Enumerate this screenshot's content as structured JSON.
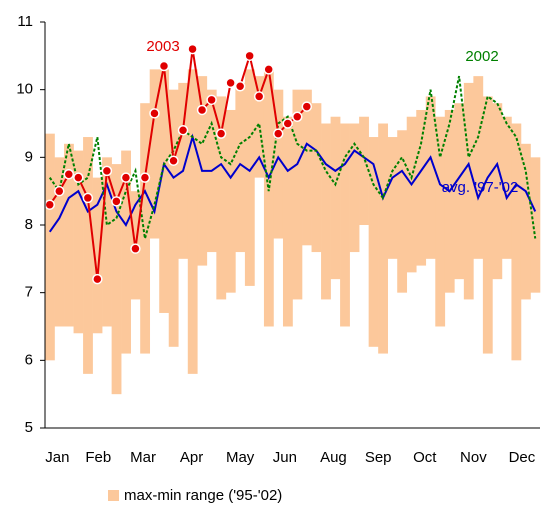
{
  "chart_data": {
    "type": "range-line",
    "xlim": [
      0,
      52
    ],
    "xticks": [
      {
        "value": 1.3,
        "label": "Jan"
      },
      {
        "value": 5.6,
        "label": "Feb"
      },
      {
        "value": 10.3,
        "label": "Mar"
      },
      {
        "value": 15.4,
        "label": "Apr"
      },
      {
        "value": 20.5,
        "label": "May"
      },
      {
        "value": 25.2,
        "label": "Jun"
      },
      {
        "value": 30.3,
        "label": "Aug"
      },
      {
        "value": 35,
        "label": "Sep"
      },
      {
        "value": 39.9,
        "label": "Oct"
      },
      {
        "value": 45,
        "label": "Nov"
      },
      {
        "value": 50.1,
        "label": "Dec"
      }
    ],
    "ylim": [
      5,
      11
    ],
    "yticks": [
      5,
      6,
      7,
      8,
      9,
      10,
      11
    ],
    "range": {
      "name": "max-min range ('95-'02)",
      "color": "#fcc89b",
      "high": [
        9.35,
        9.0,
        9.2,
        9.1,
        9.3,
        8.7,
        9.0,
        8.9,
        9.1,
        8.5,
        9.8,
        10.3,
        10.3,
        10.0,
        10.1,
        10.3,
        10.2,
        10.0,
        9.9,
        9.7,
        10.1,
        10.3,
        10.2,
        10.3,
        10.0,
        9.6,
        10.0,
        10.0,
        9.8,
        9.5,
        9.6,
        9.5,
        9.5,
        9.6,
        9.3,
        9.5,
        9.3,
        9.4,
        9.6,
        9.7,
        9.9,
        9.6,
        9.7,
        9.8,
        10.1,
        10.2,
        9.9,
        9.8,
        9.6,
        9.5,
        9.2,
        9.0
      ],
      "low": [
        6.0,
        6.5,
        6.5,
        6.4,
        5.8,
        6.4,
        6.5,
        5.5,
        6.1,
        6.9,
        6.1,
        7.8,
        6.7,
        6.2,
        7.5,
        5.8,
        7.4,
        7.6,
        6.9,
        7.0,
        7.6,
        7.1,
        8.7,
        6.5,
        7.8,
        6.5,
        6.9,
        7.7,
        7.6,
        6.9,
        7.2,
        6.5,
        7.6,
        8.0,
        6.2,
        6.1,
        7.5,
        7.0,
        7.3,
        7.4,
        7.5,
        6.5,
        7.0,
        7.2,
        6.9,
        7.5,
        6.1,
        7.2,
        7.5,
        6.0,
        6.9,
        7.0
      ]
    },
    "series": [
      {
        "name": "avg. '97-'02",
        "color": "#0000cc",
        "style": "solid",
        "markers": false,
        "values": [
          7.9,
          8.1,
          8.4,
          8.5,
          8.2,
          8.3,
          8.6,
          8.2,
          8.0,
          8.3,
          8.5,
          8.2,
          8.9,
          8.7,
          8.8,
          9.3,
          8.8,
          8.8,
          8.9,
          8.7,
          8.9,
          8.8,
          9.0,
          8.7,
          9.0,
          8.8,
          8.9,
          9.2,
          9.1,
          8.9,
          8.8,
          8.9,
          9.1,
          9.0,
          8.9,
          8.4,
          8.7,
          8.8,
          8.6,
          8.8,
          9.0,
          8.6,
          8.5,
          8.7,
          8.9,
          8.4,
          8.7,
          8.9,
          8.4,
          8.6,
          8.5,
          8.2
        ]
      },
      {
        "name": "2002",
        "color": "#008000",
        "style": "dotted",
        "markers": false,
        "values": [
          8.7,
          8.5,
          9.2,
          8.6,
          8.7,
          9.3,
          8.0,
          8.1,
          8.5,
          8.8,
          7.8,
          8.3,
          8.9,
          9.1,
          9.4,
          9.3,
          9.2,
          9.5,
          9.0,
          8.9,
          9.2,
          9.3,
          9.5,
          8.5,
          9.5,
          9.6,
          9.2,
          9.1,
          9.1,
          8.8,
          8.6,
          9.0,
          9.2,
          9.0,
          8.6,
          8.4,
          8.8,
          9.0,
          8.7,
          9.2,
          10.0,
          9.0,
          9.5,
          10.2,
          9.0,
          9.3,
          9.9,
          9.8,
          9.5,
          9.3,
          8.8,
          7.8
        ]
      },
      {
        "name": "2003",
        "color": "#e00000",
        "style": "solid",
        "markers": true,
        "values": [
          8.3,
          8.5,
          8.75,
          8.7,
          8.4,
          7.2,
          8.8,
          8.35,
          8.7,
          7.65,
          8.7,
          9.65,
          10.35,
          8.95,
          9.4,
          10.6,
          9.7,
          9.85,
          9.35,
          10.1,
          10.05,
          10.5,
          9.9,
          10.3,
          9.35,
          9.5,
          9.6,
          9.75,
          null,
          null,
          null,
          null,
          null,
          null,
          null,
          null,
          null,
          null,
          null,
          null,
          null,
          null,
          null,
          null,
          null,
          null,
          null,
          null,
          null,
          null,
          null,
          null
        ]
      }
    ]
  }
}
